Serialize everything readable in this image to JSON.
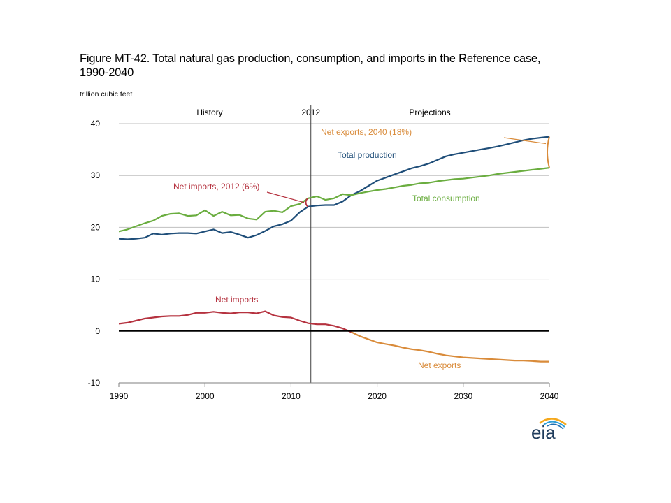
{
  "title": "Figure MT-42. Total natural gas production, consumption, and imports in the Reference case, 1990-2040",
  "unit_label": "trillion cubic feet",
  "logo_text": "eia",
  "chart_data": {
    "type": "line",
    "xlim": [
      1990,
      2040
    ],
    "ylim": [
      -10,
      40
    ],
    "x_ticks": [
      "1990",
      "2000",
      "2010",
      "2020",
      "2030",
      "2040"
    ],
    "y_ticks": [
      "-10",
      "0",
      "10",
      "20",
      "30",
      "40"
    ],
    "grid": true,
    "divider": {
      "x": 2012.3,
      "label": "2012",
      "left_label": "History",
      "right_label": "Projections"
    },
    "colors": {
      "production": "#1f4e79",
      "consumption": "#6aad3f",
      "net_imports": "#b5323f",
      "net_exports": "#d98b3a",
      "grid": "#bfbfbf"
    },
    "series": {
      "production": {
        "name": "Total production",
        "x": [
          1990,
          1991,
          1992,
          1993,
          1994,
          1995,
          1996,
          1997,
          1998,
          1999,
          2000,
          2001,
          2002,
          2003,
          2004,
          2005,
          2006,
          2007,
          2008,
          2009,
          2010,
          2011,
          2012,
          2013,
          2014,
          2015,
          2016,
          2017,
          2018,
          2019,
          2020,
          2021,
          2022,
          2023,
          2024,
          2025,
          2026,
          2027,
          2028,
          2029,
          2030,
          2031,
          2032,
          2033,
          2034,
          2035,
          2036,
          2037,
          2038,
          2039,
          2040
        ],
        "y": [
          17.8,
          17.7,
          17.8,
          18.0,
          18.8,
          18.6,
          18.8,
          18.9,
          18.9,
          18.8,
          19.2,
          19.6,
          18.9,
          19.1,
          18.6,
          18.0,
          18.5,
          19.3,
          20.2,
          20.6,
          21.3,
          22.9,
          24.0,
          24.2,
          24.3,
          24.3,
          25.0,
          26.2,
          27.0,
          28.0,
          29.0,
          29.6,
          30.2,
          30.8,
          31.4,
          31.8,
          32.3,
          33.0,
          33.7,
          34.1,
          34.4,
          34.7,
          35.0,
          35.3,
          35.6,
          36.0,
          36.4,
          36.8,
          37.1,
          37.3,
          37.5
        ]
      },
      "consumption": {
        "name": "Total consumption",
        "x": [
          1990,
          1991,
          1992,
          1993,
          1994,
          1995,
          1996,
          1997,
          1998,
          1999,
          2000,
          2001,
          2002,
          2003,
          2004,
          2005,
          2006,
          2007,
          2008,
          2009,
          2010,
          2011,
          2012,
          2013,
          2014,
          2015,
          2016,
          2017,
          2018,
          2019,
          2020,
          2021,
          2022,
          2023,
          2024,
          2025,
          2026,
          2027,
          2028,
          2029,
          2030,
          2031,
          2032,
          2033,
          2034,
          2035,
          2036,
          2037,
          2038,
          2039,
          2040
        ],
        "y": [
          19.2,
          19.6,
          20.2,
          20.8,
          21.3,
          22.2,
          22.6,
          22.7,
          22.2,
          22.3,
          23.3,
          22.2,
          23.0,
          22.3,
          22.4,
          21.7,
          21.5,
          23.0,
          23.2,
          22.9,
          24.1,
          24.5,
          25.6,
          26.0,
          25.3,
          25.6,
          26.4,
          26.2,
          26.6,
          26.9,
          27.2,
          27.4,
          27.7,
          28.0,
          28.2,
          28.5,
          28.6,
          28.9,
          29.1,
          29.3,
          29.4,
          29.6,
          29.8,
          30.0,
          30.3,
          30.5,
          30.7,
          30.9,
          31.1,
          31.3,
          31.5
        ]
      },
      "net_imports": {
        "name": "Net imports",
        "x": [
          1990,
          1991,
          1992,
          1993,
          1994,
          1995,
          1996,
          1997,
          1998,
          1999,
          2000,
          2001,
          2002,
          2003,
          2004,
          2005,
          2006,
          2007,
          2008,
          2009,
          2010,
          2011,
          2012,
          2013,
          2014,
          2015,
          2016,
          2017
        ],
        "y": [
          1.4,
          1.6,
          2.0,
          2.4,
          2.6,
          2.8,
          2.9,
          2.9,
          3.1,
          3.5,
          3.5,
          3.7,
          3.5,
          3.4,
          3.6,
          3.6,
          3.4,
          3.8,
          3.0,
          2.7,
          2.6,
          2.0,
          1.5,
          1.3,
          1.3,
          1.0,
          0.5,
          -0.2
        ]
      },
      "net_exports": {
        "name": "Net exports",
        "x": [
          2017,
          2018,
          2019,
          2020,
          2021,
          2022,
          2023,
          2024,
          2025,
          2026,
          2027,
          2028,
          2029,
          2030,
          2031,
          2032,
          2033,
          2034,
          2035,
          2036,
          2037,
          2038,
          2039,
          2040
        ],
        "y": [
          -0.2,
          -1.0,
          -1.6,
          -2.2,
          -2.5,
          -2.8,
          -3.2,
          -3.5,
          -3.7,
          -4.0,
          -4.4,
          -4.7,
          -4.9,
          -5.1,
          -5.2,
          -5.3,
          -5.4,
          -5.5,
          -5.6,
          -5.7,
          -5.7,
          -5.8,
          -5.9,
          -5.9
        ]
      }
    },
    "annotations": {
      "net_imports_2012": {
        "text": "Net imports, 2012 (6%)",
        "x": 2012,
        "y_low": 24.0,
        "y_high": 25.6
      },
      "net_exports_2040": {
        "text": "Net exports, 2040 (18%)",
        "x": 2040,
        "y_low": 31.5,
        "y_high": 37.5
      }
    }
  }
}
